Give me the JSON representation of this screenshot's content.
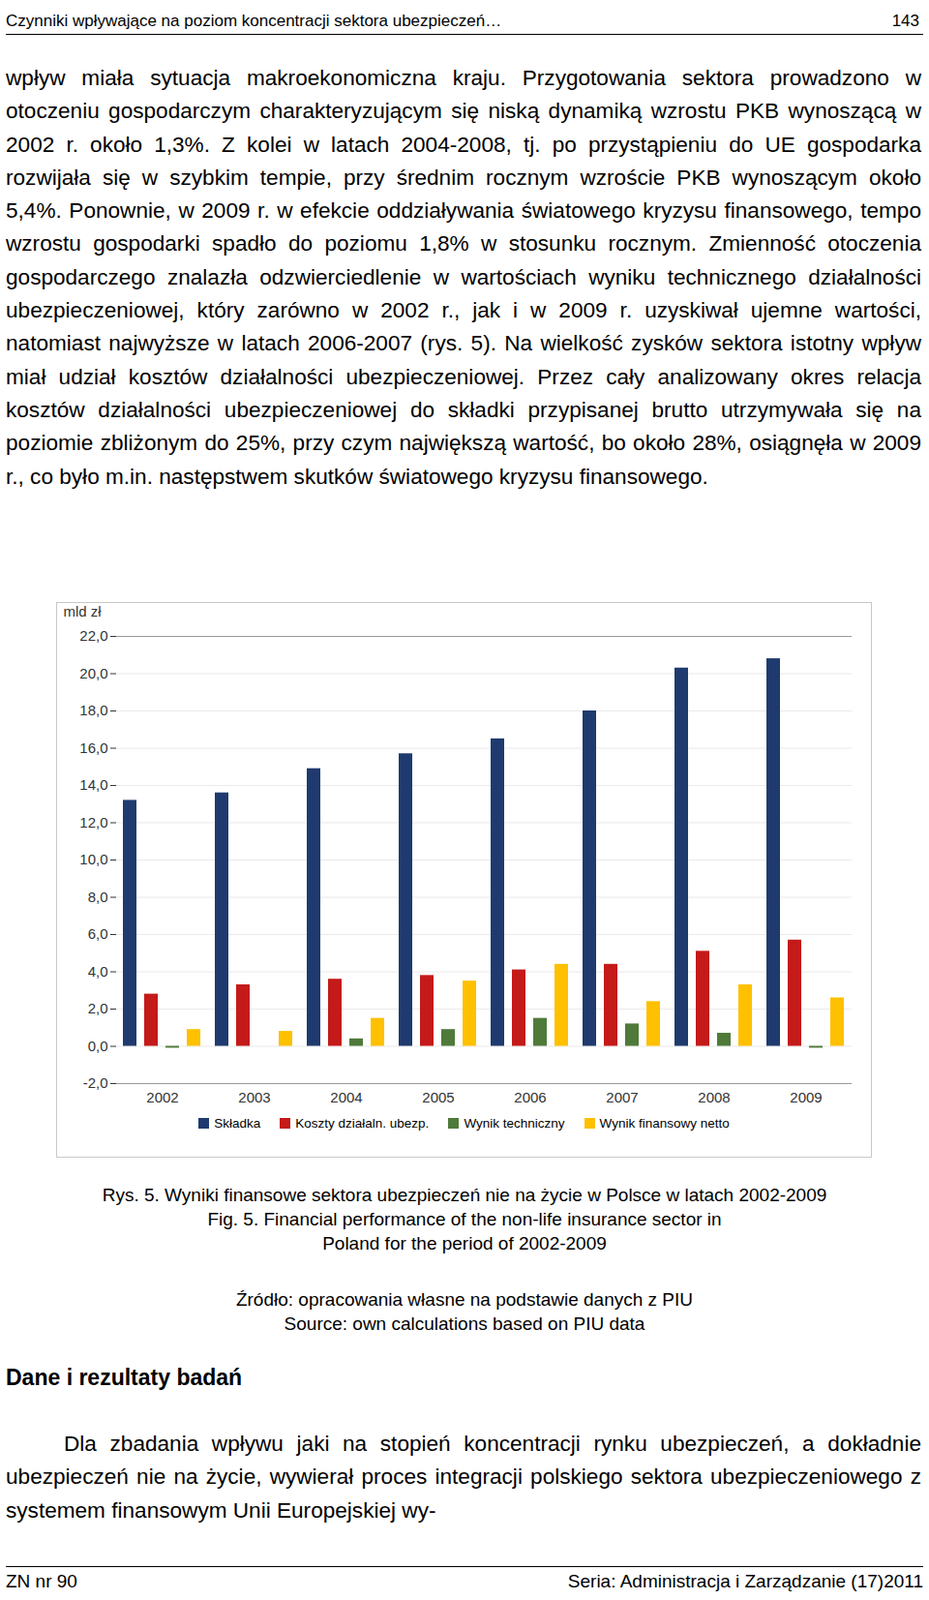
{
  "header": {
    "title": "Czynniki wpływające na poziom koncentracji sektora ubezpieczeń…",
    "page": "143"
  },
  "body": "wpływ miała sytuacja makroekonomiczna kraju. Przygotowania sektora prowadzono w otoczeniu gospodarczym charakteryzującym się niską dynamiką wzrostu PKB wynoszącą w 2002 r. około 1,3%. Z kolei w latach 2004-2008, tj. po przystąpieniu do UE gospodarka rozwijała się w szybkim tempie, przy średnim rocznym wzroście PKB wynoszącym około 5,4%. Ponownie, w 2009 r. w efekcie oddziaływania światowego kryzysu finansowego, tempo wzrostu gospodarki spadło do poziomu 1,8% w stosunku rocznym. Zmienność otoczenia gospodarczego znalazła odzwierciedlenie w wartościach wyniku technicznego działalności ubezpieczeniowej, który zarówno w 2002 r., jak i w 2009 r. uzyskiwał ujemne wartości, natomiast najwyższe w latach 2006-2007 (rys. 5). Na wielkość zysków sektora istotny wpływ miał udział kosztów działalności ubezpieczeniowej. Przez cały analizowany okres relacja kosztów działalności ubezpieczeniowej do składki przypisanej brutto utrzymywała się na poziomie zbliżonym do 25%, przy czym największą wartość, bo około 28%, osiągnęła w 2009 r., co było m.in. następstwem skutków światowego kryzysu finansowego.",
  "chart_data": {
    "type": "bar",
    "y_label": "mld zł",
    "categories": [
      "2002",
      "2003",
      "2004",
      "2005",
      "2006",
      "2007",
      "2008",
      "2009"
    ],
    "series": [
      {
        "name": "Składka",
        "color": "#1f3a6e",
        "values": [
          13.2,
          13.6,
          14.9,
          15.7,
          16.5,
          18.0,
          20.3,
          20.8
        ]
      },
      {
        "name": "Koszty działaln. ubezp.",
        "color": "#c41a1a",
        "values": [
          2.8,
          3.3,
          3.6,
          3.8,
          4.1,
          4.4,
          5.1,
          5.7
        ]
      },
      {
        "name": "Wynik techniczny",
        "color": "#4f7a3a",
        "values": [
          -0.1,
          0.0,
          0.4,
          0.9,
          1.5,
          1.2,
          0.7,
          -0.1
        ]
      },
      {
        "name": "Wynik finansowy netto",
        "color": "#ffc000",
        "values": [
          0.9,
          0.8,
          1.5,
          3.5,
          4.4,
          2.4,
          3.3,
          2.6
        ]
      }
    ],
    "ylim": [
      -2,
      22
    ],
    "yticks": [
      {
        "value": -2,
        "label": "-2,0"
      },
      {
        "value": 0,
        "label": "0,0"
      },
      {
        "value": 2,
        "label": "2,0"
      },
      {
        "value": 4,
        "label": "4,0"
      },
      {
        "value": 6,
        "label": "6,0"
      },
      {
        "value": 8,
        "label": "8,0"
      },
      {
        "value": 10,
        "label": "10,0"
      },
      {
        "value": 12,
        "label": "12,0"
      },
      {
        "value": 14,
        "label": "14,0"
      },
      {
        "value": 16,
        "label": "16,0"
      },
      {
        "value": 18,
        "label": "18,0"
      },
      {
        "value": 20,
        "label": "20,0"
      },
      {
        "value": 22,
        "label": "22,0"
      }
    ],
    "grid": true,
    "legend": "bottom"
  },
  "caption": {
    "pl": "Rys. 5. Wyniki finansowe sektora ubezpieczeń nie na życie w Polsce w latach 2002-2009",
    "en": "Fig. 5. Financial performance of the non-life insurance sector in Poland for the period of 2002-2009"
  },
  "source": {
    "pl": "Źródło: opracowania własne na podstawie danych z PIU",
    "en": "Source: own calculations based on PIU data"
  },
  "section": {
    "heading": "Dane i rezultaty badań",
    "text": "Dla zbadania wpływu jaki na stopień koncentracji rynku ubezpieczeń, a dokładnie ubezpieczeń nie na życie, wywierał proces integracji polskiego sektora ubezpieczeniowego z systemem finansowym Unii Europejskiej wy-"
  },
  "footer": {
    "left": "ZN nr 90",
    "right": "Seria: Administracja i Zarządzanie (17)2011"
  }
}
